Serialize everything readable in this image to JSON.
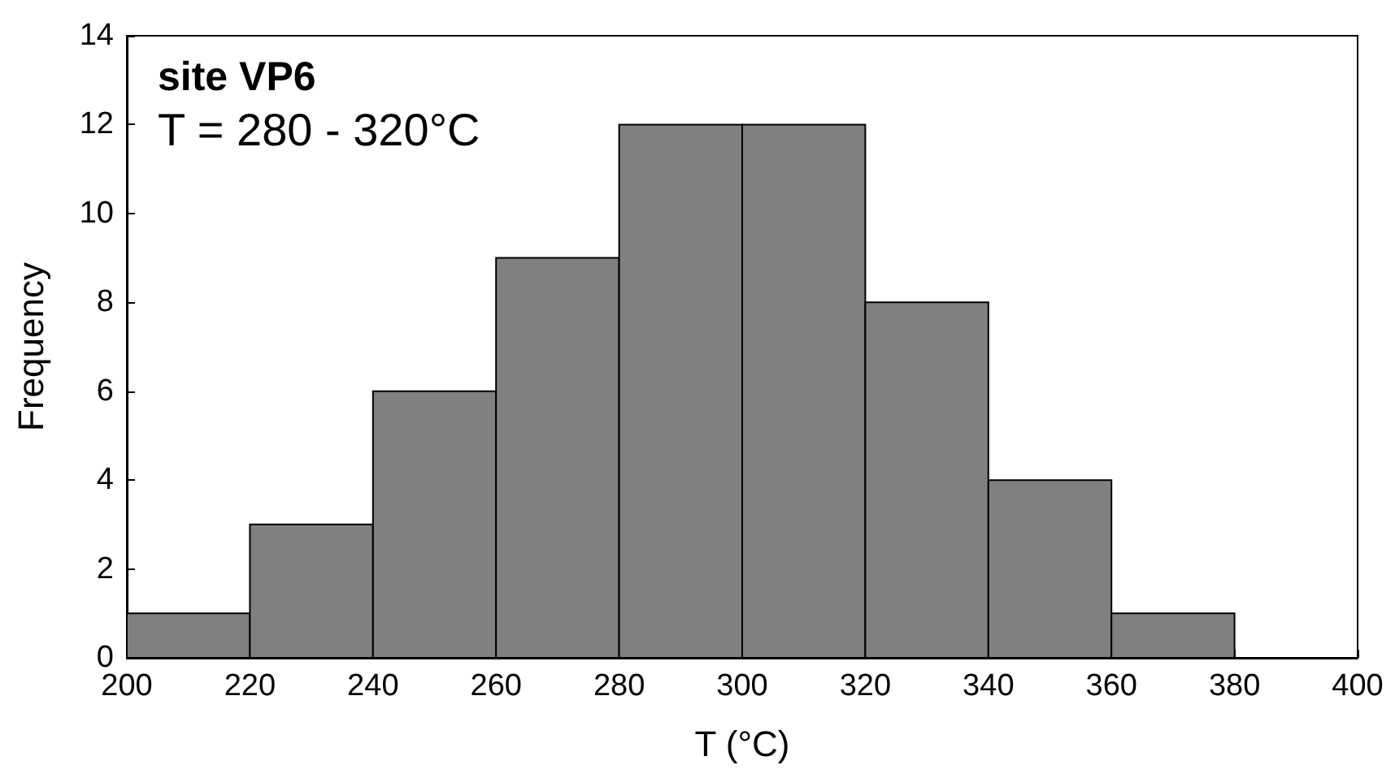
{
  "chart_data": {
    "type": "histogram",
    "title": "site VP6",
    "subtitle": "T = 280 - 320°C",
    "xlabel": "T (°C)",
    "ylabel": "Frequency",
    "bins": [
      200,
      220,
      240,
      260,
      280,
      300,
      320,
      340,
      360,
      380,
      400
    ],
    "values": [
      1,
      3,
      6,
      9,
      12,
      12,
      8,
      4,
      1,
      0
    ],
    "color": "#808080",
    "xlim": [
      200,
      400
    ],
    "xticks": [
      200,
      220,
      240,
      260,
      280,
      300,
      320,
      340,
      360,
      380,
      400
    ],
    "ylim": [
      0,
      14
    ],
    "yticks": [
      0,
      2,
      4,
      6,
      8,
      10,
      12,
      14
    ],
    "grid": false
  }
}
